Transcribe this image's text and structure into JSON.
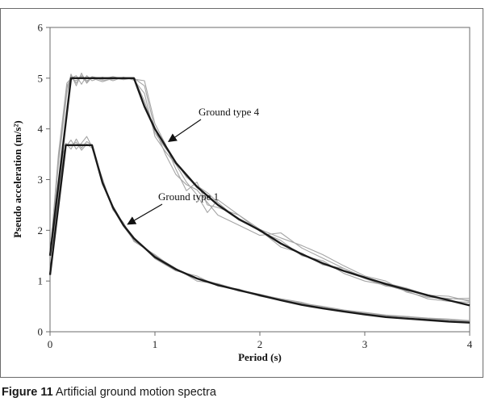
{
  "caption": {
    "figure": "Figure 11",
    "title": "Artificial ground motion spectra"
  },
  "chart_data": {
    "type": "line",
    "title": "",
    "xlabel": "Period (s)",
    "ylabel": "Pseudo acceleration (m/s²)",
    "xlim": [
      0,
      4
    ],
    "ylim": [
      0,
      6
    ],
    "xticks": [
      "0",
      "1",
      "2",
      "3",
      "4"
    ],
    "yticks": [
      "0",
      "1",
      "2",
      "3",
      "4",
      "5",
      "6"
    ],
    "grid": false,
    "legend": "none",
    "annotations": [
      {
        "text": "Ground type 4",
        "points_to": [
          1.13,
          3.75
        ]
      },
      {
        "text": "Ground type 1",
        "points_to": [
          0.74,
          2.12
        ]
      }
    ],
    "colors": {
      "target": "#1a1a1a",
      "artificial": "#a5a5a5",
      "frame": "#6b6b6b"
    },
    "series": [
      {
        "role": "target",
        "points": [
          [
            0,
            1.5
          ],
          [
            0.2,
            5.0
          ],
          [
            0.8,
            5.0
          ],
          [
            0.9,
            4.44
          ],
          [
            1.0,
            4.0
          ],
          [
            1.2,
            3.33
          ],
          [
            1.4,
            2.86
          ],
          [
            1.6,
            2.5
          ],
          [
            1.8,
            2.22
          ],
          [
            2.0,
            2.0
          ],
          [
            2.2,
            1.74
          ],
          [
            2.4,
            1.53
          ],
          [
            2.6,
            1.35
          ],
          [
            2.8,
            1.2
          ],
          [
            3.0,
            1.07
          ],
          [
            3.2,
            0.94
          ],
          [
            3.4,
            0.83
          ],
          [
            3.6,
            0.72
          ],
          [
            3.8,
            0.62
          ],
          [
            4.0,
            0.52
          ]
        ]
      },
      {
        "role": "target",
        "points": [
          [
            0,
            1.12
          ],
          [
            0.15,
            3.68
          ],
          [
            0.4,
            3.68
          ],
          [
            0.5,
            2.94
          ],
          [
            0.6,
            2.45
          ],
          [
            0.7,
            2.1
          ],
          [
            0.8,
            1.84
          ],
          [
            1.0,
            1.47
          ],
          [
            1.2,
            1.23
          ],
          [
            1.4,
            1.05
          ],
          [
            1.6,
            0.92
          ],
          [
            1.8,
            0.82
          ],
          [
            2.0,
            0.72
          ],
          [
            2.2,
            0.62
          ],
          [
            2.4,
            0.53
          ],
          [
            2.6,
            0.46
          ],
          [
            2.8,
            0.4
          ],
          [
            3.0,
            0.34
          ],
          [
            3.2,
            0.29
          ],
          [
            3.4,
            0.26
          ],
          [
            3.6,
            0.23
          ],
          [
            3.8,
            0.2
          ],
          [
            4.0,
            0.18
          ]
        ]
      },
      {
        "role": "artificial",
        "points": [
          [
            0,
            1.5
          ],
          [
            0.08,
            3.4
          ],
          [
            0.16,
            4.8
          ],
          [
            0.2,
            5.05
          ],
          [
            0.25,
            4.9
          ],
          [
            0.3,
            5.05
          ],
          [
            0.35,
            4.95
          ],
          [
            0.4,
            5.0
          ],
          [
            0.5,
            4.93
          ],
          [
            0.6,
            5.0
          ],
          [
            0.7,
            4.97
          ],
          [
            0.8,
            5.0
          ],
          [
            0.9,
            4.55
          ],
          [
            1.0,
            3.92
          ],
          [
            1.1,
            3.62
          ],
          [
            1.2,
            3.35
          ],
          [
            1.3,
            3.05
          ],
          [
            1.4,
            2.88
          ],
          [
            1.5,
            2.74
          ],
          [
            1.6,
            2.55
          ],
          [
            1.8,
            2.2
          ],
          [
            2.0,
            2.0
          ],
          [
            2.2,
            1.67
          ],
          [
            2.4,
            1.55
          ],
          [
            2.6,
            1.32
          ],
          [
            2.8,
            1.25
          ],
          [
            3.0,
            1.07
          ],
          [
            3.2,
            0.96
          ],
          [
            3.4,
            0.86
          ],
          [
            3.6,
            0.72
          ],
          [
            3.8,
            0.7
          ],
          [
            4.0,
            0.6
          ]
        ]
      },
      {
        "role": "artificial",
        "points": [
          [
            0,
            1.5
          ],
          [
            0.08,
            3.3
          ],
          [
            0.16,
            4.7
          ],
          [
            0.2,
            5.08
          ],
          [
            0.25,
            4.85
          ],
          [
            0.3,
            5.1
          ],
          [
            0.35,
            4.9
          ],
          [
            0.4,
            5.02
          ],
          [
            0.5,
            4.96
          ],
          [
            0.6,
            4.98
          ],
          [
            0.7,
            5.0
          ],
          [
            0.8,
            4.98
          ],
          [
            0.9,
            4.95
          ],
          [
            1.0,
            4.1
          ],
          [
            1.1,
            3.7
          ],
          [
            1.2,
            3.2
          ],
          [
            1.3,
            2.78
          ],
          [
            1.4,
            2.95
          ],
          [
            1.5,
            2.5
          ],
          [
            1.6,
            2.45
          ],
          [
            1.8,
            2.3
          ],
          [
            2.0,
            1.98
          ],
          [
            2.2,
            1.8
          ],
          [
            2.4,
            1.5
          ],
          [
            2.6,
            1.4
          ],
          [
            2.8,
            1.15
          ],
          [
            3.0,
            1.0
          ],
          [
            3.2,
            0.92
          ],
          [
            3.4,
            0.8
          ],
          [
            3.6,
            0.65
          ],
          [
            3.8,
            0.6
          ],
          [
            4.0,
            0.58
          ]
        ]
      },
      {
        "role": "artificial",
        "points": [
          [
            0,
            1.5
          ],
          [
            0.08,
            3.5
          ],
          [
            0.16,
            4.9
          ],
          [
            0.2,
            5.0
          ],
          [
            0.25,
            5.05
          ],
          [
            0.3,
            4.88
          ],
          [
            0.35,
            5.05
          ],
          [
            0.4,
            4.95
          ],
          [
            0.5,
            5.02
          ],
          [
            0.6,
            4.95
          ],
          [
            0.7,
            5.02
          ],
          [
            0.8,
            4.96
          ],
          [
            0.9,
            4.7
          ],
          [
            1.0,
            3.85
          ],
          [
            1.1,
            3.55
          ],
          [
            1.2,
            3.3
          ],
          [
            1.3,
            2.95
          ],
          [
            1.4,
            2.7
          ],
          [
            1.5,
            2.35
          ],
          [
            1.6,
            2.6
          ],
          [
            1.8,
            2.3
          ],
          [
            2.0,
            2.02
          ],
          [
            2.2,
            1.85
          ],
          [
            2.4,
            1.7
          ],
          [
            2.6,
            1.52
          ],
          [
            2.8,
            1.3
          ],
          [
            3.0,
            1.1
          ],
          [
            3.2,
            1.0
          ],
          [
            3.4,
            0.78
          ],
          [
            3.6,
            0.68
          ],
          [
            3.8,
            0.66
          ],
          [
            4.0,
            0.62
          ]
        ]
      },
      {
        "role": "artificial",
        "points": [
          [
            0,
            1.5
          ],
          [
            0.08,
            3.4
          ],
          [
            0.16,
            4.85
          ],
          [
            0.2,
            4.98
          ],
          [
            0.25,
            4.95
          ],
          [
            0.3,
            5.02
          ],
          [
            0.35,
            4.92
          ],
          [
            0.4,
            5.03
          ],
          [
            0.5,
            4.98
          ],
          [
            0.6,
            5.03
          ],
          [
            0.7,
            4.98
          ],
          [
            0.8,
            5.0
          ],
          [
            0.9,
            4.85
          ],
          [
            1.0,
            4.0
          ],
          [
            1.1,
            3.5
          ],
          [
            1.2,
            3.1
          ],
          [
            1.3,
            2.9
          ],
          [
            1.4,
            2.8
          ],
          [
            1.5,
            2.55
          ],
          [
            1.6,
            2.3
          ],
          [
            1.8,
            2.1
          ],
          [
            2.0,
            1.9
          ],
          [
            2.2,
            1.95
          ],
          [
            2.4,
            1.65
          ],
          [
            2.6,
            1.45
          ],
          [
            2.8,
            1.25
          ],
          [
            3.0,
            1.05
          ],
          [
            3.2,
            0.9
          ],
          [
            3.4,
            0.85
          ],
          [
            3.6,
            0.7
          ],
          [
            3.8,
            0.65
          ],
          [
            4.0,
            0.66
          ]
        ]
      },
      {
        "role": "artificial",
        "points": [
          [
            0,
            1.12
          ],
          [
            0.06,
            2.3
          ],
          [
            0.12,
            3.4
          ],
          [
            0.15,
            3.72
          ],
          [
            0.2,
            3.6
          ],
          [
            0.25,
            3.8
          ],
          [
            0.3,
            3.62
          ],
          [
            0.35,
            3.75
          ],
          [
            0.4,
            3.68
          ],
          [
            0.5,
            2.98
          ],
          [
            0.6,
            2.42
          ],
          [
            0.7,
            2.08
          ],
          [
            0.8,
            1.8
          ],
          [
            1.0,
            1.5
          ],
          [
            1.2,
            1.25
          ],
          [
            1.4,
            1.0
          ],
          [
            1.6,
            0.95
          ],
          [
            1.8,
            0.82
          ],
          [
            2.0,
            0.74
          ],
          [
            2.2,
            0.64
          ],
          [
            2.4,
            0.55
          ],
          [
            2.6,
            0.48
          ],
          [
            2.8,
            0.42
          ],
          [
            3.0,
            0.36
          ],
          [
            3.2,
            0.32
          ],
          [
            3.4,
            0.29
          ],
          [
            3.6,
            0.26
          ],
          [
            3.8,
            0.22
          ],
          [
            4.0,
            0.2
          ]
        ]
      },
      {
        "role": "artificial",
        "points": [
          [
            0,
            1.12
          ],
          [
            0.06,
            2.4
          ],
          [
            0.12,
            3.5
          ],
          [
            0.15,
            3.65
          ],
          [
            0.2,
            3.78
          ],
          [
            0.25,
            3.6
          ],
          [
            0.3,
            3.72
          ],
          [
            0.35,
            3.85
          ],
          [
            0.4,
            3.65
          ],
          [
            0.5,
            2.9
          ],
          [
            0.6,
            2.48
          ],
          [
            0.7,
            2.12
          ],
          [
            0.8,
            1.86
          ],
          [
            1.0,
            1.44
          ],
          [
            1.2,
            1.2
          ],
          [
            1.4,
            1.1
          ],
          [
            1.6,
            0.9
          ],
          [
            1.8,
            0.84
          ],
          [
            2.0,
            0.7
          ],
          [
            2.2,
            0.63
          ],
          [
            2.4,
            0.56
          ],
          [
            2.6,
            0.5
          ],
          [
            2.8,
            0.43
          ],
          [
            3.0,
            0.38
          ],
          [
            3.2,
            0.33
          ],
          [
            3.4,
            0.3
          ],
          [
            3.6,
            0.27
          ],
          [
            3.8,
            0.25
          ],
          [
            4.0,
            0.22
          ]
        ]
      },
      {
        "role": "artificial",
        "points": [
          [
            0,
            1.12
          ],
          [
            0.06,
            2.2
          ],
          [
            0.12,
            3.3
          ],
          [
            0.15,
            3.7
          ],
          [
            0.2,
            3.66
          ],
          [
            0.25,
            3.74
          ],
          [
            0.3,
            3.58
          ],
          [
            0.35,
            3.7
          ],
          [
            0.4,
            3.62
          ],
          [
            0.5,
            3.02
          ],
          [
            0.6,
            2.4
          ],
          [
            0.7,
            2.15
          ],
          [
            0.8,
            1.78
          ],
          [
            1.0,
            1.52
          ],
          [
            1.2,
            1.22
          ],
          [
            1.4,
            1.06
          ],
          [
            1.6,
            0.94
          ],
          [
            1.8,
            0.8
          ],
          [
            2.0,
            0.73
          ],
          [
            2.2,
            0.65
          ],
          [
            2.4,
            0.58
          ],
          [
            2.6,
            0.47
          ],
          [
            2.8,
            0.41
          ],
          [
            3.0,
            0.37
          ],
          [
            3.2,
            0.31
          ],
          [
            3.4,
            0.3
          ],
          [
            3.6,
            0.26
          ],
          [
            3.8,
            0.24
          ],
          [
            4.0,
            0.21
          ]
        ]
      }
    ]
  }
}
